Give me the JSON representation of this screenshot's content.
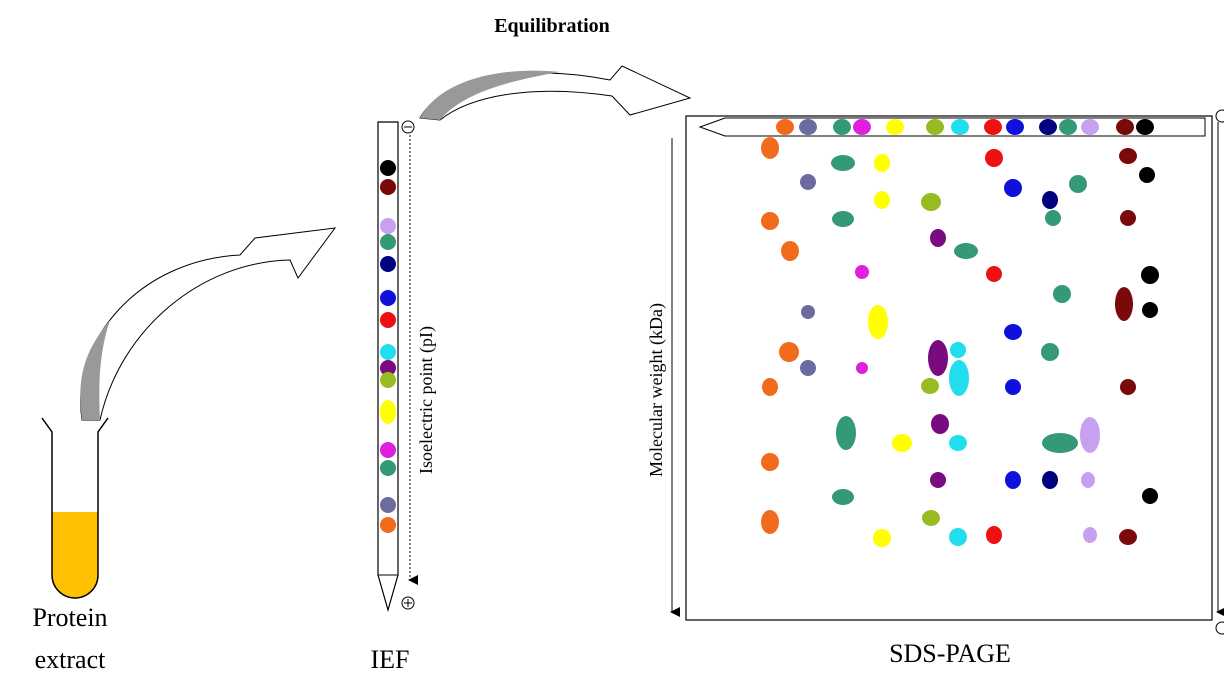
{
  "title": "Equilibration",
  "steps": [
    {
      "lines": [
        "Protein",
        "extract"
      ]
    },
    {
      "label": "IEF",
      "axis_label": "Isoelectric point (pI)"
    },
    {
      "label": "SDS-PAGE",
      "axis_label": "Molecular weight (kDa)"
    }
  ]
}
